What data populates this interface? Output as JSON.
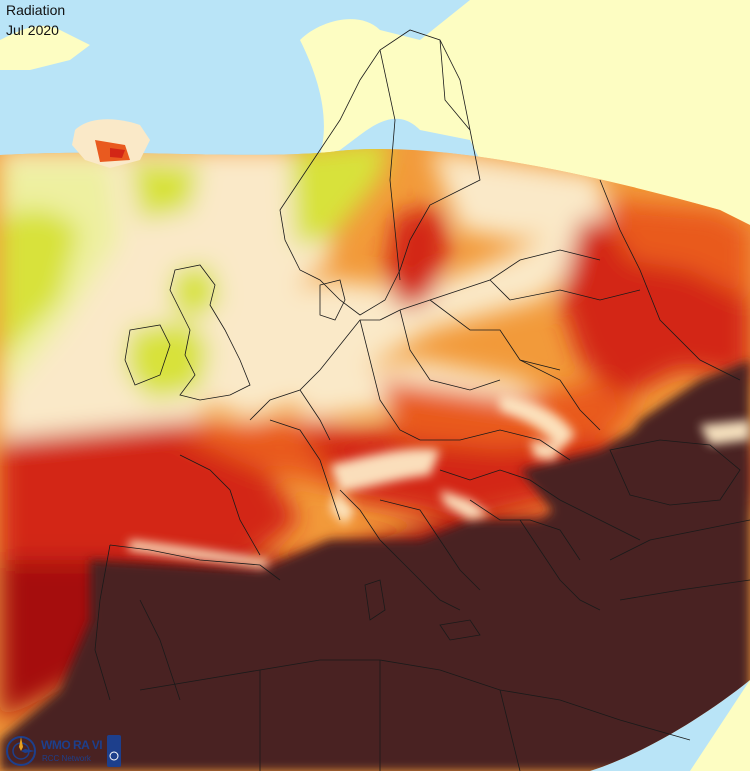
{
  "title": {
    "variable": "Radiation",
    "period": "Jul 2020"
  },
  "logo": {
    "line1": "WMO RA VI",
    "line2": "RCC Network",
    "emblem": "wmo-emblem-icon"
  },
  "colors": {
    "sea": "#b9e4f7",
    "land_outside_domain": "#fdfdc2",
    "very_low": "#eef0a0",
    "low": "#d8e23a",
    "low_mid": "#fae9c8",
    "mid": "#f29a3a",
    "mid_high": "#e95a1f",
    "high": "#d32616",
    "very_high": "#a5100f",
    "highest": "#4a2424",
    "mountain_highlight": "#fde8c4",
    "borders": "#1a1a1a"
  }
}
